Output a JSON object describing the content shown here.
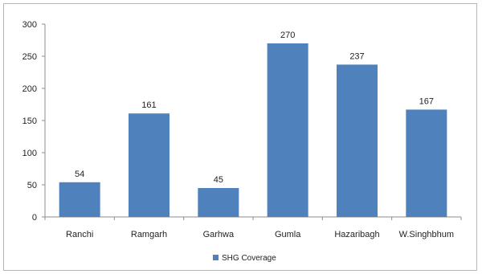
{
  "chart_data": {
    "type": "bar",
    "categories": [
      "Ranchi",
      "Ramgarh",
      "Garhwa",
      "Gumla",
      "Hazaribagh",
      "W.Singhbhum"
    ],
    "series": [
      {
        "name": "SHG Coverage",
        "values": [
          54,
          161,
          45,
          270,
          237,
          167
        ],
        "color": "#4f81bd"
      }
    ],
    "ylim": [
      0,
      300
    ],
    "yticks": [
      0,
      50,
      100,
      150,
      200,
      250,
      300
    ],
    "grid": false,
    "legend": "bottom-center"
  }
}
